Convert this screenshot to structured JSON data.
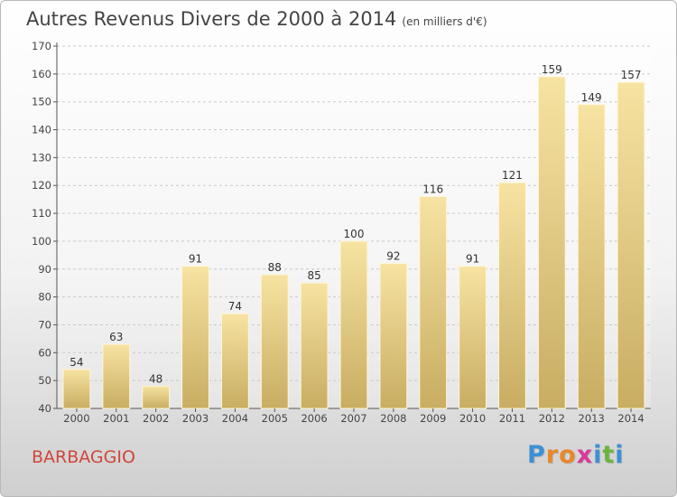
{
  "title": "Autres Revenus Divers de 2000 à 2014",
  "subtitle": "(en milliers d'€)",
  "commune": "BARBAGGIO",
  "logo": {
    "text": "Proxiti",
    "colors": [
      "#3d8fd6",
      "#e8882a",
      "#e8882a",
      "#d93a9a",
      "#3d8fd6",
      "#6ab43e",
      "#3d8fd6"
    ]
  },
  "colors": {
    "bar_light": "#f7e3a2",
    "bar_dark": "#c8ad62",
    "commune": "#d0463c"
  },
  "chart_data": {
    "type": "bar",
    "categories": [
      "2000",
      "2001",
      "2002",
      "2003",
      "2004",
      "2005",
      "2006",
      "2007",
      "2008",
      "2009",
      "2010",
      "2011",
      "2012",
      "2013",
      "2014"
    ],
    "values": [
      54,
      63,
      48,
      91,
      74,
      88,
      85,
      100,
      92,
      116,
      91,
      121,
      159,
      149,
      157
    ],
    "title": "Autres Revenus Divers de 2000 à 2014",
    "xlabel": "",
    "ylabel": "",
    "ylim": [
      40,
      170
    ],
    "yticks": [
      40,
      50,
      60,
      70,
      80,
      90,
      100,
      110,
      120,
      130,
      140,
      150,
      160,
      170
    ],
    "grid": true
  }
}
